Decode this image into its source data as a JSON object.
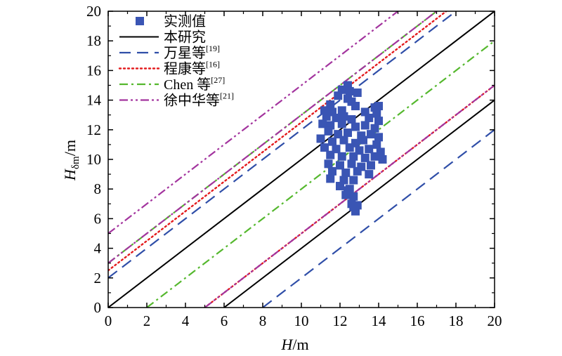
{
  "chart_data": {
    "type": "scatter",
    "xlabel": {
      "main": "H",
      "unit": "/m"
    },
    "ylabel": {
      "main": "H",
      "sub": "δm",
      "unit": "/m"
    },
    "xlim": [
      0,
      20
    ],
    "ylim": [
      0,
      20
    ],
    "xticks": [
      "0",
      "2",
      "4",
      "6",
      "8",
      "10",
      "12",
      "14",
      "16",
      "18",
      "20"
    ],
    "yticks": [
      "0",
      "2",
      "4",
      "6",
      "8",
      "10",
      "12",
      "14",
      "16",
      "18",
      "20"
    ],
    "grid": false,
    "legend_position": "top-left",
    "series": [
      {
        "name": "实测值",
        "kind": "markers",
        "color": "#3a55b4",
        "points": [
          [
            12.4,
            15.0
          ],
          [
            12.1,
            14.7
          ],
          [
            12.5,
            14.6
          ],
          [
            12.9,
            14.5
          ],
          [
            11.9,
            14.3
          ],
          [
            12.4,
            14.1
          ],
          [
            12.6,
            13.9
          ],
          [
            11.5,
            13.7
          ],
          [
            12.8,
            13.6
          ],
          [
            13.8,
            13.5
          ],
          [
            14.0,
            13.6
          ],
          [
            11.2,
            13.3
          ],
          [
            11.6,
            13.2
          ],
          [
            12.1,
            13.3
          ],
          [
            13.3,
            13.2
          ],
          [
            13.9,
            13.1
          ],
          [
            11.3,
            12.9
          ],
          [
            11.8,
            12.8
          ],
          [
            12.2,
            12.9
          ],
          [
            12.6,
            12.7
          ],
          [
            13.5,
            12.8
          ],
          [
            14.0,
            12.6
          ],
          [
            11.1,
            12.4
          ],
          [
            11.5,
            12.3
          ],
          [
            12.1,
            12.4
          ],
          [
            12.8,
            12.2
          ],
          [
            13.3,
            12.3
          ],
          [
            13.8,
            12.1
          ],
          [
            11.4,
            11.9
          ],
          [
            11.9,
            11.7
          ],
          [
            12.4,
            11.8
          ],
          [
            13.1,
            11.6
          ],
          [
            13.6,
            11.7
          ],
          [
            14.0,
            11.5
          ],
          [
            11.0,
            11.4
          ],
          [
            11.6,
            11.2
          ],
          [
            12.2,
            11.3
          ],
          [
            12.8,
            11.1
          ],
          [
            13.2,
            11.3
          ],
          [
            13.9,
            11.0
          ],
          [
            11.2,
            10.8
          ],
          [
            11.8,
            10.7
          ],
          [
            12.5,
            10.8
          ],
          [
            13.0,
            10.6
          ],
          [
            13.5,
            10.7
          ],
          [
            14.1,
            10.5
          ],
          [
            11.5,
            10.3
          ],
          [
            12.1,
            10.2
          ],
          [
            12.7,
            10.2
          ],
          [
            13.3,
            10.1
          ],
          [
            13.8,
            10.2
          ],
          [
            14.2,
            10.0
          ],
          [
            11.4,
            9.7
          ],
          [
            12.0,
            9.6
          ],
          [
            12.6,
            9.7
          ],
          [
            13.1,
            9.5
          ],
          [
            13.6,
            9.6
          ],
          [
            11.6,
            9.2
          ],
          [
            12.3,
            9.1
          ],
          [
            12.9,
            9.2
          ],
          [
            13.5,
            9.0
          ],
          [
            11.5,
            8.7
          ],
          [
            12.2,
            8.6
          ],
          [
            12.7,
            8.6
          ],
          [
            12.0,
            8.2
          ],
          [
            12.5,
            8.0
          ],
          [
            12.3,
            7.6
          ],
          [
            12.7,
            7.5
          ],
          [
            12.6,
            7.0
          ],
          [
            12.9,
            6.9
          ],
          [
            12.8,
            6.5
          ],
          [
            12.7,
            6.8
          ],
          [
            12.4,
            7.9
          ]
        ]
      },
      {
        "name": "本研究",
        "kind": "line",
        "color": "#000000",
        "dash": "solid",
        "lines": [
          [
            [
              0,
              0
            ],
            [
              20,
              20
            ]
          ],
          [
            [
              6,
              0
            ],
            [
              20,
              14
            ]
          ]
        ]
      },
      {
        "name": "万星等",
        "sup": "[19]",
        "kind": "line",
        "color": "#2f4ea8",
        "dash": "long",
        "lines": [
          [
            [
              0,
              2
            ],
            [
              18,
              20
            ]
          ],
          [
            [
              8,
              0
            ],
            [
              20,
              12
            ]
          ]
        ]
      },
      {
        "name": "程康等",
        "sup": "[16]",
        "kind": "line",
        "color": "#e31a1c",
        "dash": "dot",
        "lines": [
          [
            [
              0,
              2.5
            ],
            [
              17.5,
              20
            ]
          ],
          [
            [
              5,
              0
            ],
            [
              20,
              15
            ]
          ]
        ]
      },
      {
        "name": "Chen 等",
        "sup": "[27]",
        "kind": "line",
        "color": "#55b82e",
        "dash": "dashdot",
        "lines": [
          [
            [
              0,
              3
            ],
            [
              17,
              20
            ]
          ],
          [
            [
              2,
              0
            ],
            [
              20,
              18
            ]
          ]
        ]
      },
      {
        "name": "徐中华等",
        "sup": "[21]",
        "kind": "line",
        "color": "#a3349e",
        "dash": "dashdotdot",
        "lines": [
          [
            [
              0,
              5
            ],
            [
              15,
              20
            ]
          ],
          [
            [
              0,
              3
            ],
            [
              17,
              20
            ]
          ],
          [
            [
              5,
              0
            ],
            [
              20,
              15
            ]
          ]
        ]
      }
    ]
  }
}
